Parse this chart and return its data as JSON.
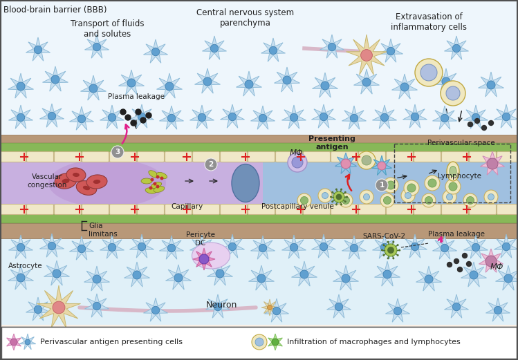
{
  "bg_color": "#faf0e6",
  "top_bg": "#f0f8ff",
  "bottom_bg": "#e8f4f8",
  "vessel_wall_color": "#c8a090",
  "glia_color": "#90b870",
  "capillary_color": "#c8b8e0",
  "venule_color": "#90b8d8",
  "endothelial_color": "#f0e8c8",
  "endothelial_ec": "#c8b888",
  "labels": {
    "bbb": "Blood-brain barrier (BBB)",
    "transport": "Transport of fluids\nand solutes",
    "cns": "Central nervous system\nparenchyma",
    "extravasation": "Extravasation of\ninflammatory cells",
    "plasma_leakage_left": "Plasma leakage",
    "plasma_leakage_right": "Plasma leakage",
    "vascular_congestion": "Vascular\ncongestion",
    "capillary": "Capillary",
    "postcapillary": "Postcapillary venule",
    "presenting_antigen": "Presenting\nantigen",
    "perivascular_space": "Perivascular space",
    "lymphocyte": "Lymphocyte",
    "glia_limitans": "Glia\nlimitans",
    "astrocyte": "Astrocyte",
    "neuron": "Neuron",
    "pericyte_dc": "Pericyte\nDC",
    "sars_cov2": "SARS-CoV-2",
    "m_phi_left": "MΦ",
    "m_phi_right": "MΦ",
    "legend1": "Perivascular antigen presenting cells",
    "legend2": "Infiltration of macrophages and lymphocytes"
  }
}
